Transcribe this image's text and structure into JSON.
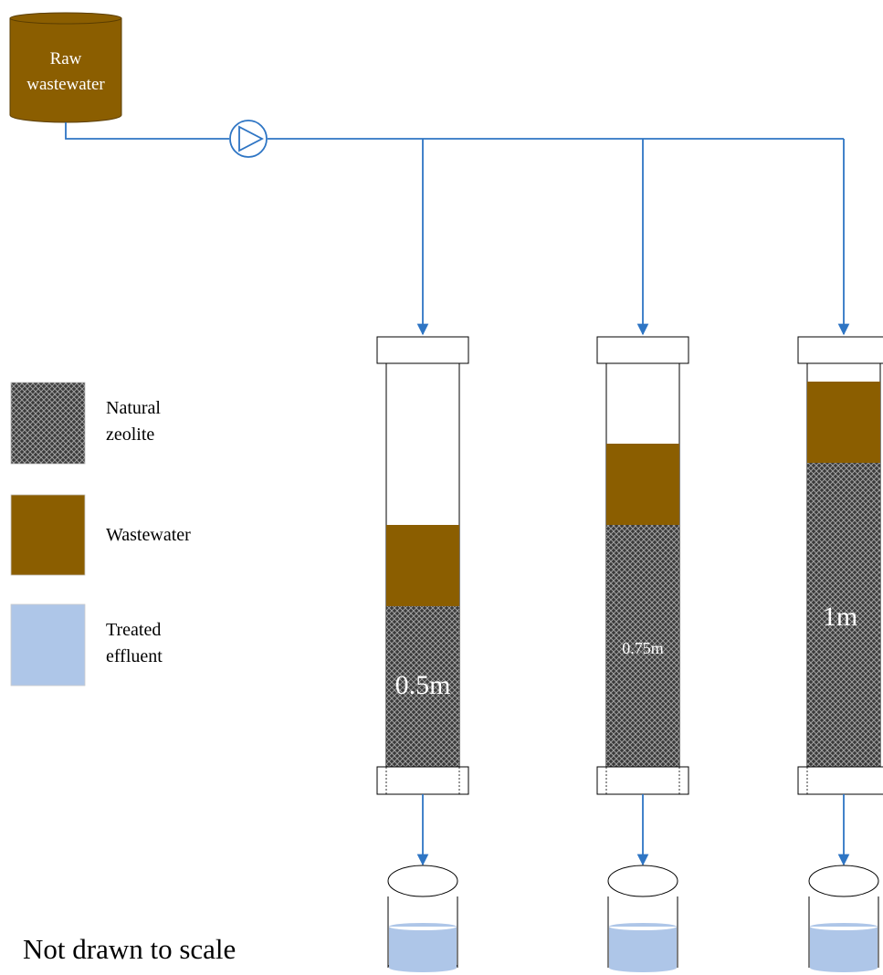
{
  "colors": {
    "wastewater": "#8B5E00",
    "treated_effluent": "#AEC6E8",
    "zeolite_fill": "#3a3a3a",
    "zeolite_hatch": "#9a9a9a",
    "pipe": "#2E75C4",
    "outline": "#000000"
  },
  "source_tank": {
    "label_line1": "Raw",
    "label_line2": "wastewater"
  },
  "pump": {
    "icon": "pump-icon"
  },
  "legend": {
    "items": [
      {
        "swatch": "zeolite",
        "line1": "Natural",
        "line2": "zeolite"
      },
      {
        "swatch": "wastewater",
        "line1": "Wastewater",
        "line2": ""
      },
      {
        "swatch": "treated",
        "line1": "Treated",
        "line2": "effluent"
      }
    ]
  },
  "columns": [
    {
      "bed_label": "0.5m"
    },
    {
      "bed_label": "0.75m"
    },
    {
      "bed_label": "1m"
    }
  ],
  "note": "Not drawn to scale"
}
